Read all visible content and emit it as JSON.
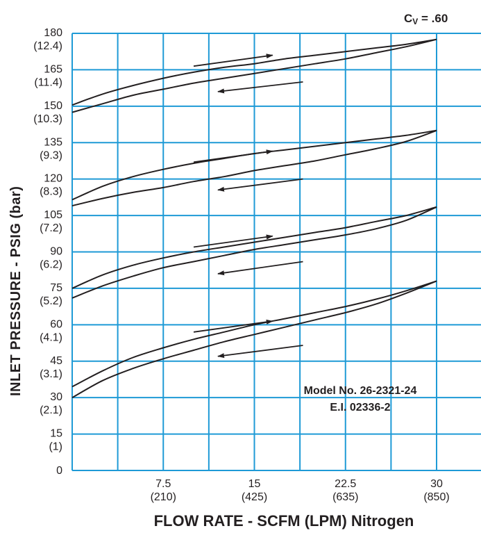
{
  "chart_data": {
    "type": "line",
    "title": "",
    "ylabel": "INLET PRESSURE - PSIG (bar)",
    "xlabel": "FLOW RATE - SCFM (LPM) Nitrogen",
    "annotation_cv_main": "C",
    "annotation_cv_sub": "V",
    "annotation_cv_value": " = .60",
    "model_line_1": "Model No. 26-2321-24",
    "model_line_2": "E.I. 02336-2",
    "xlim": [
      0,
      35.5
    ],
    "ylim": [
      0,
      180
    ],
    "grid": true,
    "x_ticks": [
      {
        "value": 7.5,
        "label": "7.5",
        "sublabel": "(210)"
      },
      {
        "value": 15,
        "label": "15",
        "sublabel": "(425)"
      },
      {
        "value": 22.5,
        "label": "22.5",
        "sublabel": "(635)"
      },
      {
        "value": 30,
        "label": "30",
        "sublabel": "(850)"
      }
    ],
    "y_ticks": [
      {
        "value": 0,
        "label": "0",
        "sublabel": ""
      },
      {
        "value": 15,
        "label": "15",
        "sublabel": "(1)"
      },
      {
        "value": 30,
        "label": "30",
        "sublabel": "(2.1)"
      },
      {
        "value": 45,
        "label": "45",
        "sublabel": "(3.1)"
      },
      {
        "value": 60,
        "label": "60",
        "sublabel": "(4.1)"
      },
      {
        "value": 75,
        "label": "75",
        "sublabel": "(5.2)"
      },
      {
        "value": 90,
        "label": "90",
        "sublabel": "(6.2)"
      },
      {
        "value": 105,
        "label": "105",
        "sublabel": "(7.2)"
      },
      {
        "value": 120,
        "label": "120",
        "sublabel": "(8.3)"
      },
      {
        "value": 135,
        "label": "135",
        "sublabel": "(9.3)"
      },
      {
        "value": 150,
        "label": "150",
        "sublabel": "(10.3)"
      },
      {
        "value": 165,
        "label": "165",
        "sublabel": "(11.4)"
      },
      {
        "value": 180,
        "label": "180",
        "sublabel": "(12.4)"
      }
    ],
    "series": [
      {
        "x": [
          0,
          2.5,
          5,
          7.5,
          10,
          12.5,
          15,
          17.5,
          20,
          22.5,
          25,
          27.5,
          30
        ],
        "y": [
          34.5,
          41,
          46.5,
          50.5,
          54,
          57,
          60,
          62.5,
          65,
          67.5,
          70.5,
          74,
          78
        ]
      },
      {
        "x": [
          0,
          2.5,
          5,
          7.5,
          10,
          12.5,
          15,
          17.5,
          20,
          22.5,
          25,
          27.5,
          30
        ],
        "y": [
          30,
          37,
          42,
          46,
          49.5,
          53,
          56,
          59,
          62,
          65,
          68.5,
          73,
          78
        ]
      },
      {
        "x": [
          0,
          2.5,
          5,
          7.5,
          10,
          12.5,
          15,
          17.5,
          20,
          22.5,
          25,
          27.5,
          30
        ],
        "y": [
          75,
          80.5,
          84.5,
          87.5,
          90,
          92,
          94,
          96,
          98,
          100,
          102.5,
          105,
          108.5
        ]
      },
      {
        "x": [
          0,
          2.5,
          5,
          7.5,
          10,
          12.5,
          15,
          17.5,
          20,
          22.5,
          25,
          27.5,
          30
        ],
        "y": [
          71,
          76,
          80,
          83.5,
          86,
          88.5,
          91,
          93,
          95,
          97,
          99.5,
          103,
          108.5
        ]
      },
      {
        "x": [
          0,
          2.5,
          5,
          7.5,
          10,
          12.5,
          15,
          17.5,
          20,
          22.5,
          25,
          27.5,
          30
        ],
        "y": [
          111.5,
          117,
          121,
          124,
          126.5,
          128.5,
          130.5,
          132,
          133.5,
          135,
          136.5,
          138,
          140
        ]
      },
      {
        "x": [
          0,
          2.5,
          5,
          7.5,
          10,
          12.5,
          15,
          17.5,
          20,
          22.5,
          25,
          27.5,
          30
        ],
        "y": [
          109,
          112,
          114.5,
          116.5,
          119,
          121,
          123.5,
          125.5,
          127.5,
          130,
          132.5,
          135.5,
          140
        ]
      },
      {
        "x": [
          0,
          2.5,
          5,
          7.5,
          10,
          12.5,
          15,
          17.5,
          20,
          22.5,
          25,
          27.5,
          30
        ],
        "y": [
          150.5,
          155,
          158.5,
          161.5,
          164,
          166,
          167.5,
          169.5,
          171,
          172.5,
          174,
          175.5,
          177.5
        ]
      },
      {
        "x": [
          0,
          2.5,
          5,
          7.5,
          10,
          12.5,
          15,
          17.5,
          20,
          22.5,
          25,
          27.5,
          30
        ],
        "y": [
          147.5,
          151,
          154.5,
          157,
          159.5,
          161.5,
          163.5,
          165.5,
          167.5,
          169.5,
          172,
          174.5,
          177.5
        ]
      }
    ],
    "arrows": [
      {
        "direction": "increasing",
        "from": [
          10,
          166.5
        ],
        "to": [
          16.5,
          171
        ]
      },
      {
        "direction": "decreasing",
        "from": [
          19,
          160
        ],
        "to": [
          12,
          156
        ]
      },
      {
        "direction": "increasing",
        "from": [
          10,
          127
        ],
        "to": [
          16.5,
          131.5
        ]
      },
      {
        "direction": "decreasing",
        "from": [
          19,
          120
        ],
        "to": [
          12,
          115.5
        ]
      },
      {
        "direction": "increasing",
        "from": [
          10,
          92
        ],
        "to": [
          16.5,
          96.5
        ]
      },
      {
        "direction": "decreasing",
        "from": [
          19,
          86
        ],
        "to": [
          12,
          81
        ]
      },
      {
        "direction": "increasing",
        "from": [
          10,
          57
        ],
        "to": [
          16.5,
          61.5
        ]
      },
      {
        "direction": "decreasing",
        "from": [
          19,
          51.5
        ],
        "to": [
          12,
          47
        ]
      }
    ],
    "colors": {
      "grid": "#1e9ad6",
      "curve": "#231f20",
      "text": "#231f20"
    }
  }
}
